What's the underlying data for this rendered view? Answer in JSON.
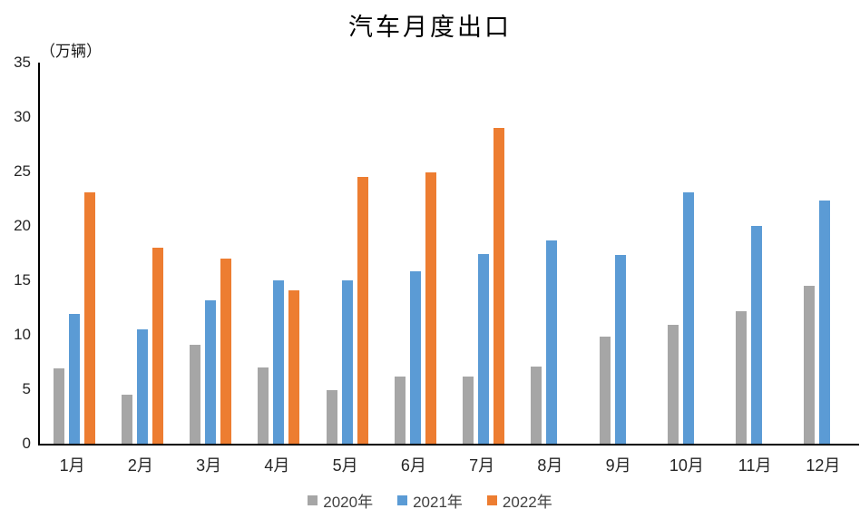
{
  "chart_data": {
    "type": "bar",
    "title": "汽车月度出口",
    "unit_label": "（万辆）",
    "categories": [
      "1月",
      "2月",
      "3月",
      "4月",
      "5月",
      "6月",
      "7月",
      "8月",
      "9月",
      "10月",
      "11月",
      "12月"
    ],
    "series": [
      {
        "name": "2020年",
        "color": "#A6A6A6",
        "values": [
          6.9,
          4.5,
          9.1,
          7.0,
          4.9,
          6.2,
          6.2,
          7.1,
          9.8,
          10.9,
          12.2,
          14.5
        ]
      },
      {
        "name": "2021年",
        "color": "#5B9BD5",
        "values": [
          11.9,
          10.5,
          13.2,
          15.0,
          15.0,
          15.8,
          17.4,
          18.7,
          17.3,
          23.1,
          20.0,
          22.3
        ]
      },
      {
        "name": "2022年",
        "color": "#ED7D31",
        "values": [
          23.1,
          18.0,
          17.0,
          14.1,
          24.5,
          24.9,
          29.0
        ]
      }
    ],
    "yticks": [
      0,
      5,
      10,
      15,
      20,
      25,
      30,
      35
    ],
    "ylim": [
      0,
      35
    ],
    "xlabel": "",
    "ylabel": "（万辆）",
    "grid": false,
    "legend_position": "bottom",
    "axis_color": "#000000",
    "text_color": "#262626"
  }
}
